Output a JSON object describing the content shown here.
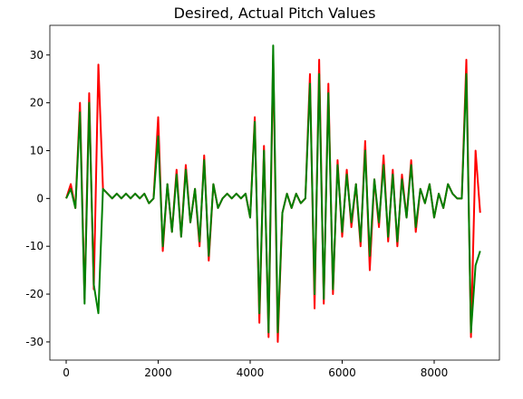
{
  "chart_data": {
    "type": "line",
    "title": "Desired, Actual Pitch Values",
    "x": [
      0,
      100,
      200,
      300,
      400,
      500,
      600,
      700,
      800,
      900,
      1000,
      1100,
      1200,
      1300,
      1400,
      1500,
      1600,
      1700,
      1800,
      1900,
      2000,
      2100,
      2200,
      2300,
      2400,
      2500,
      2600,
      2700,
      2800,
      2900,
      3000,
      3100,
      3200,
      3300,
      3400,
      3500,
      3600,
      3700,
      3800,
      3900,
      4000,
      4100,
      4200,
      4300,
      4400,
      4500,
      4600,
      4700,
      4800,
      4900,
      5000,
      5100,
      5200,
      5300,
      5400,
      5500,
      5600,
      5700,
      5800,
      5900,
      6000,
      6100,
      6200,
      6300,
      6400,
      6500,
      6600,
      6700,
      6800,
      6900,
      7000,
      7100,
      7200,
      7300,
      7400,
      7500,
      7600,
      7700,
      7800,
      7900,
      8000,
      8100,
      8200,
      8300,
      8400,
      8500,
      8600,
      8700,
      8800,
      8900,
      9000
    ],
    "series": [
      {
        "color": "#ff0000",
        "values": [
          0,
          3,
          -2,
          20,
          -21,
          22,
          -19,
          28,
          2,
          1,
          0,
          1,
          0,
          1,
          0,
          1,
          0,
          1,
          -1,
          0,
          17,
          -11,
          3,
          -7,
          6,
          -8,
          7,
          -5,
          2,
          -10,
          9,
          -13,
          3,
          -2,
          0,
          1,
          0,
          1,
          0,
          1,
          -4,
          17,
          -26,
          11,
          -29,
          30,
          -30,
          -3,
          1,
          -2,
          1,
          -1,
          0,
          26,
          -23,
          29,
          -22,
          24,
          -20,
          8,
          -8,
          6,
          -6,
          3,
          -10,
          12,
          -15,
          4,
          -6,
          9,
          -9,
          6,
          -10,
          5,
          -4,
          8,
          -7,
          2,
          -1,
          3,
          -4,
          1,
          -2,
          3,
          1,
          0,
          0,
          29,
          -29,
          10,
          -3
        ]
      },
      {
        "color": "#008000",
        "values": [
          0,
          2,
          -2,
          18,
          -22,
          20,
          -18,
          -24,
          2,
          1,
          0,
          1,
          0,
          1,
          0,
          1,
          0,
          1,
          -1,
          0,
          13,
          -10,
          3,
          -7,
          5,
          -8,
          6,
          -5,
          2,
          -9,
          8,
          -12,
          3,
          -2,
          0,
          1,
          0,
          1,
          0,
          1,
          -4,
          16,
          -24,
          10,
          -28,
          32,
          -28,
          -3,
          1,
          -2,
          1,
          -1,
          0,
          24,
          -20,
          26,
          -21,
          22,
          -19,
          7,
          -7,
          5,
          -5,
          3,
          -9,
          10,
          -12,
          4,
          -5,
          7,
          -8,
          5,
          -9,
          4,
          -4,
          7,
          -6,
          2,
          -1,
          3,
          -4,
          1,
          -2,
          3,
          1,
          0,
          0,
          26,
          -28,
          -14,
          -11
        ]
      }
    ],
    "xlim": [
      -355,
      9419
    ],
    "ylim": [
      -33.8,
      36.2
    ],
    "xticks": [
      0,
      2000,
      4000,
      6000,
      8000
    ],
    "yticks": [
      -30,
      -20,
      -10,
      0,
      10,
      20,
      30
    ]
  }
}
